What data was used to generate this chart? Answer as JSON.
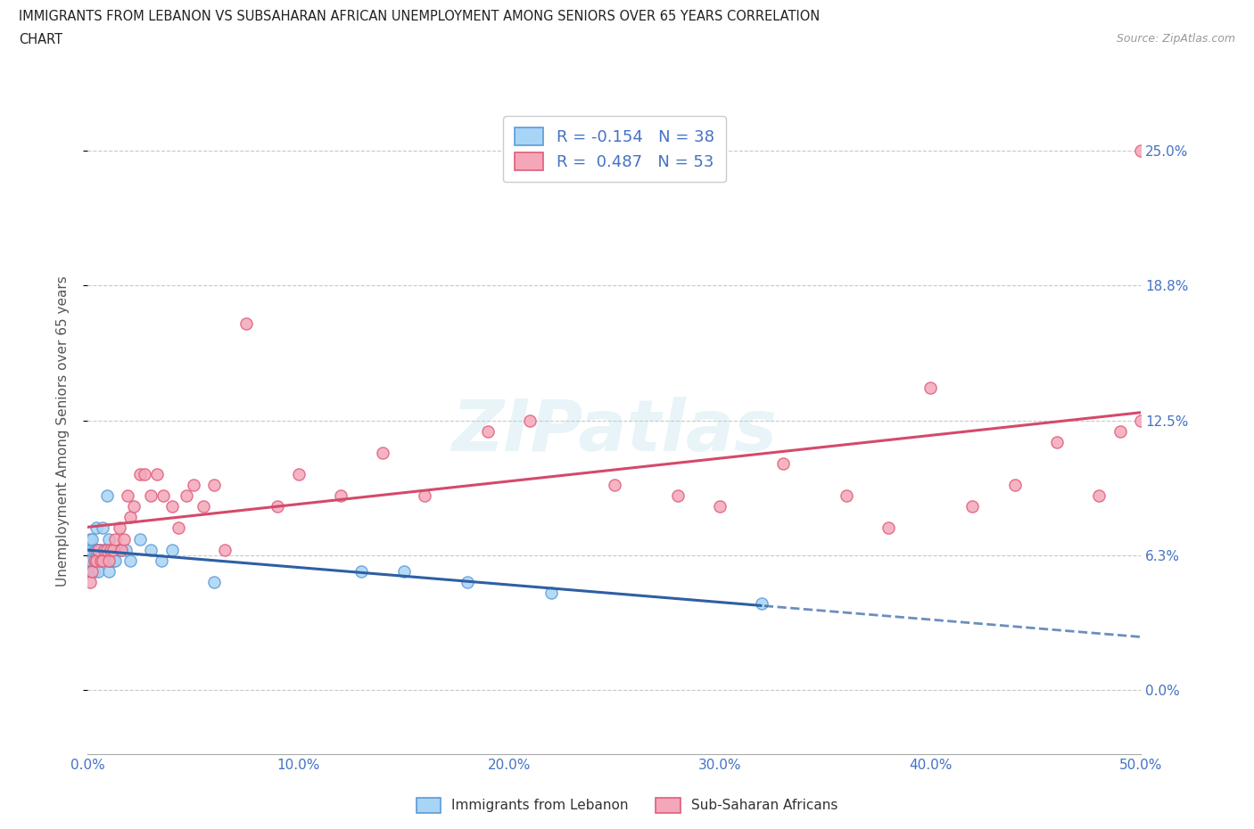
{
  "title_line1": "IMMIGRANTS FROM LEBANON VS SUBSAHARAN AFRICAN UNEMPLOYMENT AMONG SENIORS OVER 65 YEARS CORRELATION",
  "title_line2": "CHART",
  "source": "Source: ZipAtlas.com",
  "ylabel": "Unemployment Among Seniors over 65 years",
  "xlim": [
    0.0,
    0.5
  ],
  "ylim": [
    -0.03,
    0.27
  ],
  "yticks": [
    0.0,
    0.0625,
    0.125,
    0.1875,
    0.25
  ],
  "ytick_labels": [
    "0.0%",
    "6.3%",
    "12.5%",
    "18.8%",
    "25.0%"
  ],
  "xticks": [
    0.0,
    0.1,
    0.2,
    0.3,
    0.4,
    0.5
  ],
  "xtick_labels": [
    "0.0%",
    "10.0%",
    "20.0%",
    "30.0%",
    "40.0%",
    "50.0%"
  ],
  "lebanon_dot_color": "#a8d4f5",
  "lebanon_edge_color": "#5b9bd5",
  "subsaharan_dot_color": "#f4a7b9",
  "subsaharan_edge_color": "#e05c7a",
  "trend_lebanon_color": "#2e5fa3",
  "trend_subsaharan_color": "#d44a6a",
  "R_lebanon": -0.154,
  "N_lebanon": 38,
  "R_subsaharan": 0.487,
  "N_subsaharan": 53,
  "label_color": "#4472C4",
  "grid_color": "#c8c8c8",
  "legend_label_lebanon": "Immigrants from Lebanon",
  "legend_label_subsaharan": "Sub-Saharan Africans",
  "lebanon_x": [
    0.001,
    0.001,
    0.002,
    0.002,
    0.002,
    0.003,
    0.003,
    0.003,
    0.004,
    0.004,
    0.004,
    0.005,
    0.005,
    0.006,
    0.006,
    0.007,
    0.008,
    0.009,
    0.01,
    0.01,
    0.01,
    0.011,
    0.012,
    0.013,
    0.015,
    0.016,
    0.018,
    0.02,
    0.025,
    0.03,
    0.035,
    0.04,
    0.06,
    0.13,
    0.15,
    0.18,
    0.22,
    0.32
  ],
  "lebanon_y": [
    0.055,
    0.07,
    0.06,
    0.065,
    0.07,
    0.055,
    0.06,
    0.065,
    0.06,
    0.065,
    0.075,
    0.055,
    0.065,
    0.06,
    0.065,
    0.075,
    0.065,
    0.09,
    0.055,
    0.06,
    0.07,
    0.06,
    0.06,
    0.06,
    0.065,
    0.065,
    0.065,
    0.06,
    0.07,
    0.065,
    0.06,
    0.065,
    0.05,
    0.055,
    0.055,
    0.05,
    0.045,
    0.04
  ],
  "subsaharan_x": [
    0.001,
    0.002,
    0.003,
    0.004,
    0.005,
    0.006,
    0.007,
    0.008,
    0.009,
    0.01,
    0.011,
    0.012,
    0.013,
    0.015,
    0.016,
    0.017,
    0.019,
    0.02,
    0.022,
    0.025,
    0.027,
    0.03,
    0.033,
    0.036,
    0.04,
    0.043,
    0.047,
    0.05,
    0.055,
    0.06,
    0.065,
    0.075,
    0.09,
    0.1,
    0.12,
    0.14,
    0.16,
    0.19,
    0.21,
    0.25,
    0.28,
    0.3,
    0.33,
    0.36,
    0.38,
    0.4,
    0.42,
    0.44,
    0.46,
    0.48,
    0.49,
    0.5,
    0.5
  ],
  "subsaharan_y": [
    0.05,
    0.055,
    0.06,
    0.06,
    0.065,
    0.06,
    0.06,
    0.065,
    0.065,
    0.06,
    0.065,
    0.065,
    0.07,
    0.075,
    0.065,
    0.07,
    0.09,
    0.08,
    0.085,
    0.1,
    0.1,
    0.09,
    0.1,
    0.09,
    0.085,
    0.075,
    0.09,
    0.095,
    0.085,
    0.095,
    0.065,
    0.17,
    0.085,
    0.1,
    0.09,
    0.11,
    0.09,
    0.12,
    0.125,
    0.095,
    0.09,
    0.085,
    0.105,
    0.09,
    0.075,
    0.14,
    0.085,
    0.095,
    0.115,
    0.09,
    0.12,
    0.125,
    0.25
  ]
}
